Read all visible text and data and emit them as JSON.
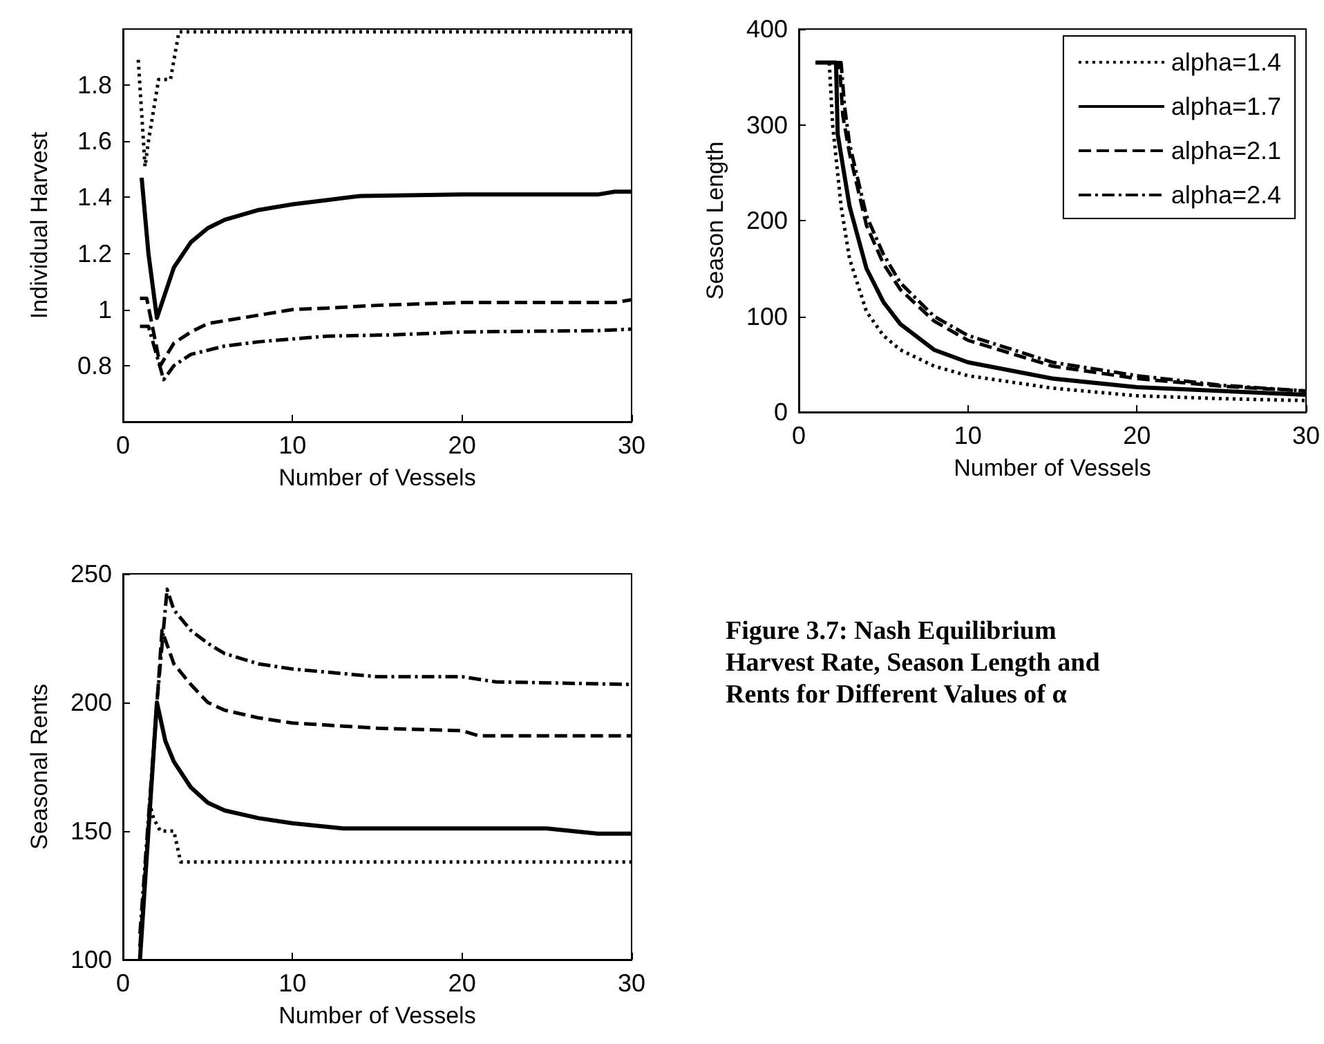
{
  "chart_data": [
    {
      "type": "line",
      "xlabel": "Number of Vessels",
      "ylabel": "Individual Harvest",
      "xlim": [
        0,
        30
      ],
      "xticks": [
        0,
        10,
        20,
        30
      ],
      "ylim": [
        0.6,
        2.0
      ],
      "yticks": [
        0.8,
        1,
        1.2,
        1.4,
        1.6,
        1.8
      ],
      "grid": false,
      "legend": false,
      "marker": "none",
      "series": [
        {
          "color": "#000000",
          "line_style": "dotted",
          "x": [
            0.9,
            1.3,
            1.5,
            2.1,
            2.8,
            3.3,
            10,
            20,
            30
          ],
          "values": [
            1.89,
            1.51,
            1.6,
            1.82,
            1.82,
            1.99,
            1.99,
            1.99,
            1.99
          ]
        },
        {
          "color": "#000000",
          "line_style": "solid",
          "x": [
            1.1,
            1.5,
            2.0,
            3,
            4,
            5,
            6,
            8,
            10,
            12,
            14,
            20,
            28,
            29,
            30
          ],
          "values": [
            1.47,
            1.2,
            0.97,
            1.15,
            1.24,
            1.29,
            1.32,
            1.355,
            1.375,
            1.39,
            1.405,
            1.41,
            1.41,
            1.42,
            1.42
          ]
        },
        {
          "color": "#000000",
          "line_style": "dashed",
          "x": [
            1,
            1.4,
            2.2,
            3,
            4,
            5,
            6,
            8,
            10,
            12,
            15,
            20,
            29,
            30
          ],
          "values": [
            1.04,
            1.04,
            0.8,
            0.88,
            0.92,
            0.95,
            0.96,
            0.98,
            1.0,
            1.005,
            1.015,
            1.025,
            1.025,
            1.035
          ]
        },
        {
          "color": "#000000",
          "line_style": "dashdot",
          "x": [
            1,
            1.5,
            2.4,
            3,
            4,
            6,
            8,
            10,
            12,
            16,
            20,
            28,
            30
          ],
          "values": [
            0.94,
            0.94,
            0.75,
            0.8,
            0.84,
            0.87,
            0.885,
            0.895,
            0.905,
            0.91,
            0.92,
            0.925,
            0.93
          ]
        }
      ]
    },
    {
      "type": "line",
      "xlabel": "Number of Vessels",
      "ylabel": "Season Length",
      "xlim": [
        0,
        30
      ],
      "xticks": [
        0,
        10,
        20,
        30
      ],
      "ylim": [
        0,
        400
      ],
      "yticks": [
        0,
        100,
        200,
        300,
        400
      ],
      "grid": false,
      "legend": "top right",
      "marker": "none",
      "series": [
        {
          "name": "alpha=1.4",
          "color": "#000000",
          "line_style": "dotted",
          "x": [
            1,
            1.8,
            2,
            2.5,
            3,
            4,
            5,
            6,
            8,
            10,
            15,
            20,
            25,
            30
          ],
          "values": [
            365,
            365,
            300,
            215,
            160,
            105,
            80,
            65,
            48,
            38,
            25,
            17,
            14,
            12
          ]
        },
        {
          "name": "alpha=1.7",
          "color": "#000000",
          "line_style": "solid",
          "x": [
            1,
            2.2,
            2.3,
            3,
            4,
            5,
            6,
            8,
            10,
            15,
            20,
            25,
            30
          ],
          "values": [
            365,
            365,
            290,
            215,
            150,
            115,
            92,
            65,
            52,
            35,
            26,
            22,
            18
          ]
        },
        {
          "name": "alpha=2.1",
          "color": "#000000",
          "line_style": "dashed",
          "x": [
            1,
            2.4,
            2.6,
            3,
            4,
            5,
            6,
            8,
            10,
            15,
            20,
            25,
            30
          ],
          "values": [
            365,
            365,
            310,
            270,
            195,
            155,
            128,
            95,
            75,
            48,
            35,
            27,
            22
          ]
        },
        {
          "name": "alpha=2.4",
          "color": "#000000",
          "line_style": "dashdot",
          "x": [
            1,
            2.5,
            2.7,
            3,
            4,
            5,
            6,
            8,
            10,
            15,
            20,
            25,
            30
          ],
          "values": [
            365,
            365,
            320,
            280,
            205,
            165,
            135,
            100,
            80,
            52,
            38,
            28,
            22
          ]
        }
      ]
    },
    {
      "type": "line",
      "xlabel": "Number of Vessels",
      "ylabel": "Seasonal Rents",
      "xlim": [
        0,
        30
      ],
      "xticks": [
        0,
        10,
        20,
        30
      ],
      "ylim": [
        100,
        250
      ],
      "yticks": [
        100,
        150,
        200,
        250
      ],
      "grid": false,
      "legend": false,
      "marker": "none",
      "series": [
        {
          "color": "#000000",
          "line_style": "dotted",
          "x": [
            1,
            1.6,
            1.8,
            2.2,
            3,
            3.4,
            10,
            20,
            30
          ],
          "values": [
            105,
            160,
            155,
            150,
            150,
            138,
            138,
            138,
            138
          ]
        },
        {
          "color": "#000000",
          "line_style": "solid",
          "x": [
            1,
            1.5,
            2,
            2.5,
            3,
            4,
            5,
            6,
            8,
            10,
            13,
            20,
            25,
            28,
            30
          ],
          "values": [
            100,
            150,
            200,
            185,
            177,
            167,
            161,
            158,
            155,
            153,
            151,
            151,
            151,
            149,
            149
          ]
        },
        {
          "color": "#000000",
          "line_style": "dashed",
          "x": [
            1,
            1.7,
            2.3,
            3,
            4,
            5,
            6,
            8,
            10,
            15,
            20,
            21,
            30
          ],
          "values": [
            105,
            170,
            228,
            215,
            207,
            200,
            197,
            194,
            192,
            190,
            189,
            187,
            187
          ]
        },
        {
          "color": "#000000",
          "line_style": "dashdot",
          "x": [
            1,
            2,
            2.6,
            3,
            4,
            5,
            6,
            8,
            10,
            15,
            20,
            22,
            30
          ],
          "values": [
            110,
            200,
            244,
            236,
            228,
            223,
            219,
            215,
            213,
            210,
            210,
            208,
            207
          ]
        }
      ]
    },
    {
      "type": "other",
      "title": "Figure 3.7: Nash Equilibrium Harvest Rate, Season Length and Rents for Different Values of α"
    }
  ]
}
